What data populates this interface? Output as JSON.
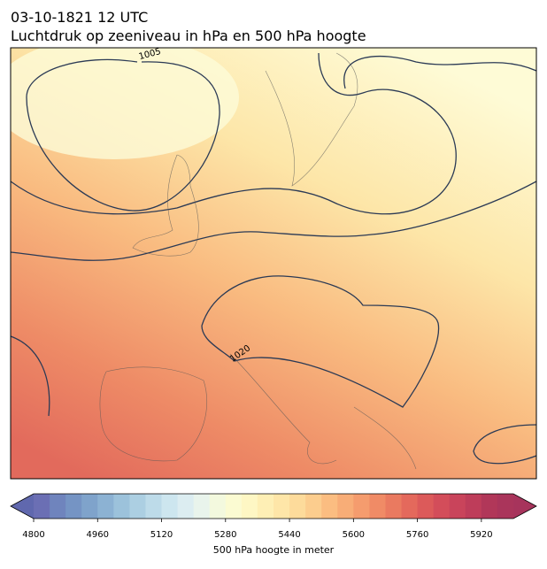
{
  "header": {
    "title": "03-10-1821 12 UTC",
    "subtitle": "Luchtdruk op zeeniveau in hPa en 500 hPa hoogte"
  },
  "map": {
    "contour_labels": [
      "1005",
      "1020"
    ]
  },
  "colorbar": {
    "lim": [
      4800,
      6000
    ],
    "ticks": [
      4800,
      4960,
      5120,
      5280,
      5440,
      5600,
      5760,
      5920
    ],
    "label": "500 hPa hoogte in meter",
    "under": "#6068ae",
    "over": "#a7345c",
    "colors": [
      "#6b6fb4",
      "#6f84bd",
      "#7594c4",
      "#7fa3cb",
      "#8cb2d3",
      "#9cc2db",
      "#accfe2",
      "#bddbe9",
      "#cde6ef",
      "#dcedf1",
      "#e9f4ec",
      "#f3f9de",
      "#fbfbd2",
      "#fef7c4",
      "#feefb5",
      "#fee6a8",
      "#fddb9b",
      "#fccd8e",
      "#fbbd81",
      "#f8ad77",
      "#f59c6e",
      "#f08b66",
      "#ea7a60",
      "#e4695c",
      "#dc5a5a",
      "#d34d5a",
      "#c9445b",
      "#be3d5a",
      "#b13759",
      "#aa355b"
    ]
  }
}
